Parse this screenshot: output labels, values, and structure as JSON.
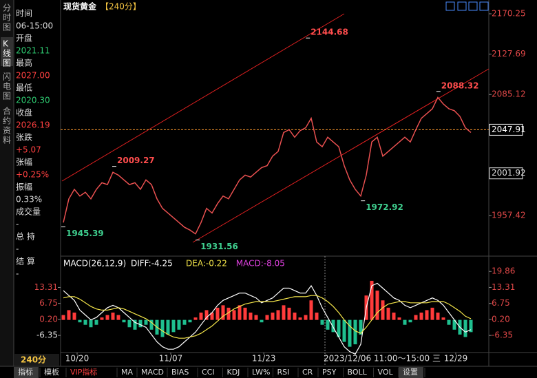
{
  "sidebar_tabs": [
    "分时图",
    "K线图",
    "闪电图",
    "合约资料"
  ],
  "info_panel": [
    {
      "label": "时间",
      "value": "06-15:00",
      "color": "#dddddd"
    },
    {
      "label": "开盘",
      "value": "2021.11",
      "color": "#2ecc71"
    },
    {
      "label": "最高",
      "value": "2027.00",
      "color": "#ff4040"
    },
    {
      "label": "最低",
      "value": "2020.30",
      "color": "#2ecc71"
    },
    {
      "label": "收盘",
      "value": "2026.19",
      "color": "#ff4040"
    },
    {
      "label": "张跌",
      "value": "+5.07",
      "color": "#ff4040"
    },
    {
      "label": "张幅",
      "value": "+0.25%",
      "color": "#ff4040"
    },
    {
      "label": "振幅",
      "value": "0.33%",
      "color": "#dddddd"
    },
    {
      "label": "成交量",
      "value": "-",
      "color": "#dddddd"
    },
    {
      "label": "总 持",
      "value": "-",
      "color": "#dddddd"
    },
    {
      "label": "结 算",
      "value": "-",
      "color": "#dddddd"
    }
  ],
  "period_label": "240分",
  "cursor_label": "2023/12/06 11:00～15:00 三",
  "toolbar": [
    "指标",
    "模板",
    "VIP指标",
    "MA",
    "MACD",
    "BIAS",
    "CCI",
    "KDJ",
    "LW%",
    "RSI",
    "CR",
    "PSY",
    "BOLL",
    "VOL",
    "设置"
  ],
  "chart_data": [
    {
      "type": "line",
      "title": "现货黄金",
      "subtitle": "【240分】",
      "xlim": [
        -0.5,
        77.25
      ],
      "ylim": [
        1916,
        2184.8
      ],
      "xticks": [
        {
          "value": 2.5,
          "label": "10/20"
        },
        {
          "value": 19.5,
          "label": "11/07"
        },
        {
          "value": 36.4,
          "label": "11/23"
        },
        {
          "value": 71.25,
          "label": "12/29"
        }
      ],
      "yticks": [
        2170.25,
        2127.69,
        2085.12,
        1957.42
      ],
      "series": [
        {
          "name": "收盘",
          "color": "#e85050",
          "values": [
            1950,
            1975,
            1985,
            1978,
            1982,
            1975,
            1985,
            1992,
            1990,
            2003,
            2000,
            1995,
            1990,
            1992,
            1985,
            1995,
            1990,
            1975,
            1965,
            1960,
            1955,
            1950,
            1945,
            1942,
            1938,
            1950,
            1965,
            1960,
            1970,
            1978,
            1975,
            1985,
            1995,
            2000,
            1998,
            2003,
            2008,
            2010,
            2020,
            2025,
            2045,
            2048,
            2040,
            2047,
            2050,
            2060,
            2035,
            2030,
            2040,
            2035,
            2030,
            2010,
            1995,
            1985,
            1978,
            2000,
            2035,
            2040,
            2020,
            2025,
            2030,
            2035,
            2040,
            2035,
            2048,
            2060,
            2065,
            2070,
            2082,
            2075,
            2070,
            2068,
            2062,
            2050,
            2045
          ]
        }
      ],
      "annotations": [
        {
          "x": 44.4,
          "value": 2144.68,
          "kind": "high",
          "color": "#ff4d4d"
        },
        {
          "x": 9.25,
          "value": 2009.27,
          "kind": "high",
          "color": "#ff4d4d"
        },
        {
          "x": 0,
          "value": 1945.39,
          "kind": "low",
          "color": "#3fcf8f"
        },
        {
          "x": 24.4,
          "value": 1931.56,
          "kind": "low",
          "color": "#3fcf8f"
        },
        {
          "x": 68.1,
          "value": 2088.32,
          "kind": "high",
          "color": "#ff4d4d"
        },
        {
          "x": 54.4,
          "value": 1972.92,
          "kind": "low",
          "color": "#3fcf8f"
        }
      ],
      "price_markers": [
        {
          "value": 2047.91,
          "color": "#ffffff",
          "line_color": "#ff9a2e"
        },
        {
          "value": 2001.92,
          "color": "#dddddd"
        }
      ]
    },
    {
      "type": "macd",
      "title": "MACD(26,12,9)",
      "readouts": [
        {
          "text": "DIFF:-4.25",
          "color": "#ffffff"
        },
        {
          "text": "DEA:-0.22",
          "color": "#f5e64a"
        },
        {
          "text": "MACD:-8.05",
          "color": "#e040e0"
        }
      ],
      "xlim": [
        -0.5,
        77.25
      ],
      "ylim": [
        -12.8,
        25
      ],
      "yticks": [
        19.86,
        13.31,
        6.75,
        {
          "value": 0.2,
          "label": "0.20"
        },
        -6.35
      ],
      "series": [
        {
          "name": "MACD",
          "color": "#ff3b3b",
          "negative_color": "#1fbf8f",
          "values": [
            2,
            4,
            3,
            -1,
            -2,
            -3,
            -2,
            1,
            2,
            3,
            2,
            -1,
            -3,
            -4,
            -3,
            -2,
            -4,
            -6,
            -7,
            -6,
            -5,
            -4,
            -2,
            -1,
            1,
            3,
            4,
            3,
            5,
            6,
            5,
            4,
            6,
            5,
            3,
            2,
            -1,
            2,
            3,
            4,
            6,
            5,
            3,
            1,
            2,
            8,
            3,
            -2,
            -4,
            -5,
            -7,
            -9,
            -11,
            -10,
            -6,
            10,
            16,
            12,
            8,
            5,
            3,
            1,
            -2,
            -1,
            2,
            3,
            4,
            5,
            3,
            1,
            -2,
            -4,
            -6,
            -7,
            -5
          ]
        },
        {
          "name": "DIFF",
          "color": "#ffffff",
          "values": [
            12,
            10,
            8,
            4,
            2,
            0,
            1,
            3,
            5,
            6,
            5,
            3,
            1,
            -1,
            -2,
            -3,
            -6,
            -9,
            -11,
            -12,
            -12,
            -11,
            -9,
            -7,
            -5,
            -2,
            1,
            3,
            6,
            8,
            9,
            10,
            11,
            11,
            10,
            9,
            7,
            8,
            9,
            11,
            13,
            13,
            12,
            11,
            11,
            14,
            10,
            5,
            1,
            -3,
            -7,
            -11,
            -13,
            -14,
            -10,
            5,
            14,
            15,
            13,
            11,
            9,
            8,
            6,
            5,
            6,
            7,
            8,
            9,
            8,
            6,
            3,
            0,
            -3,
            -5,
            -4
          ]
        },
        {
          "name": "DEA",
          "color": "#f5e64a",
          "values": [
            9,
            9.5,
            9.5,
            8.5,
            7,
            5.5,
            4.5,
            4,
            4,
            4.5,
            5,
            4.5,
            3.5,
            2.5,
            1.5,
            0.5,
            -1,
            -3,
            -4.5,
            -6,
            -7,
            -7.5,
            -7.5,
            -7,
            -6.5,
            -5.5,
            -4,
            -2.5,
            -0.5,
            1.5,
            3,
            4.5,
            5.5,
            6.5,
            7,
            7.5,
            7.5,
            7.5,
            7.5,
            8,
            8.5,
            9,
            9.5,
            9.5,
            9.5,
            10,
            10,
            9,
            7.5,
            5.5,
            3,
            0,
            -2.5,
            -4.5,
            -5.5,
            -3,
            0,
            3,
            5,
            6.5,
            7,
            7.5,
            7.5,
            7,
            7,
            7,
            7,
            7.5,
            7.5,
            7.5,
            6.5,
            5,
            3.5,
            1.5,
            0.5
          ]
        }
      ]
    }
  ]
}
